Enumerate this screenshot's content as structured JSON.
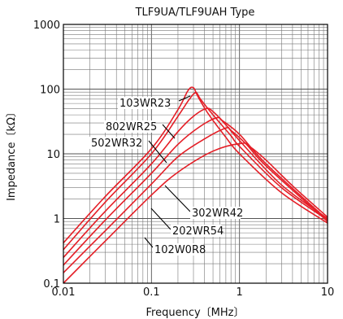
{
  "chart_data": {
    "type": "line",
    "title": "TLF9UA/TLF9UAH Type",
    "xlabel": "Frequency〔MHz〕",
    "ylabel": "Impedance〔kΩ〕",
    "x_scale": "log",
    "y_scale": "log",
    "xlim": [
      0.01,
      10
    ],
    "ylim": [
      0.1,
      1000
    ],
    "grid": true,
    "color": "#e41e26",
    "x_ticks": [
      "0.01",
      "0.1",
      "1",
      "10"
    ],
    "y_ticks": [
      "0.1",
      "1",
      "10",
      "100",
      "1000"
    ],
    "series": [
      {
        "name": "103WR23",
        "points": [
          [
            0.01,
            0.42
          ],
          [
            0.03,
            2.2
          ],
          [
            0.1,
            12
          ],
          [
            0.2,
            48
          ],
          [
            0.26,
            95
          ],
          [
            0.3,
            105
          ],
          [
            0.34,
            75
          ],
          [
            0.45,
            40
          ],
          [
            0.7,
            18
          ],
          [
            1,
            10
          ],
          [
            3,
            2.5
          ],
          [
            10,
            0.85
          ]
        ]
      },
      {
        "name": "802WR25",
        "points": [
          [
            0.01,
            0.33
          ],
          [
            0.03,
            1.8
          ],
          [
            0.1,
            10
          ],
          [
            0.2,
            38
          ],
          [
            0.27,
            70
          ],
          [
            0.32,
            88
          ],
          [
            0.36,
            70
          ],
          [
            0.5,
            40
          ],
          [
            0.8,
            19
          ],
          [
            1,
            13
          ],
          [
            3,
            3
          ],
          [
            10,
            0.95
          ]
        ]
      },
      {
        "name": "502WR32",
        "points": [
          [
            0.01,
            0.25
          ],
          [
            0.03,
            1.3
          ],
          [
            0.1,
            7
          ],
          [
            0.2,
            22
          ],
          [
            0.3,
            38
          ],
          [
            0.42,
            50
          ],
          [
            0.5,
            45
          ],
          [
            0.7,
            28
          ],
          [
            1,
            16
          ],
          [
            3,
            3.3
          ],
          [
            10,
            1
          ]
        ]
      },
      {
        "name": "302WR42",
        "points": [
          [
            0.01,
            0.19
          ],
          [
            0.03,
            0.95
          ],
          [
            0.1,
            5
          ],
          [
            0.2,
            14
          ],
          [
            0.35,
            26
          ],
          [
            0.55,
            36
          ],
          [
            0.65,
            32
          ],
          [
            1,
            20
          ],
          [
            2,
            7
          ],
          [
            10,
            0.95
          ]
        ]
      },
      {
        "name": "202WR54",
        "points": [
          [
            0.01,
            0.145
          ],
          [
            0.03,
            0.65
          ],
          [
            0.1,
            3.4
          ],
          [
            0.2,
            9
          ],
          [
            0.4,
            17
          ],
          [
            0.7,
            25
          ],
          [
            0.8,
            23
          ],
          [
            1.2,
            14
          ],
          [
            2,
            6.5
          ],
          [
            10,
            0.9
          ]
        ]
      },
      {
        "name": "102W0R8",
        "points": [
          [
            0.01,
            0.1
          ],
          [
            0.03,
            0.45
          ],
          [
            0.1,
            2.3
          ],
          [
            0.2,
            5.2
          ],
          [
            0.5,
            11
          ],
          [
            1.05,
            14.5
          ],
          [
            1.3,
            13
          ],
          [
            2,
            8
          ],
          [
            4,
            3.2
          ],
          [
            10,
            1.05
          ]
        ]
      }
    ]
  }
}
